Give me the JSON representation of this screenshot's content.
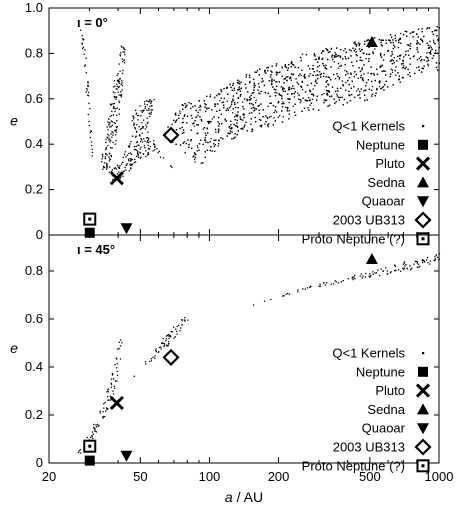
{
  "chart_data": {
    "type": "scatter",
    "x_scale": "log",
    "xlim": [
      20,
      1000
    ],
    "x_ticks": [
      20,
      50,
      100,
      200,
      500,
      1000
    ],
    "xlabel": "a / AU",
    "legend_position": "bottom-right",
    "panels": [
      {
        "label": "ι = 0°",
        "ylabel": "e",
        "ylim": [
          0,
          1.0
        ],
        "y_ticks": [
          0,
          0.2,
          0.4,
          0.6,
          0.8,
          1.0
        ],
        "y_tick_labels": [
          "0",
          "0.2",
          "0.4",
          "0.6",
          "0.8",
          "1.0"
        ],
        "kernel_regions": [
          {
            "name": "left-high-spike",
            "points": [
              [
                27,
                0.92
              ],
              [
                28,
                0.8
              ],
              [
                29,
                0.6
              ],
              [
                30,
                0.38
              ],
              [
                31,
                0.3
              ],
              [
                30.5,
                0.45
              ],
              [
                29.5,
                0.7
              ],
              [
                28.5,
                0.85
              ]
            ]
          },
          {
            "name": "mid-spike",
            "points": [
              [
                33,
                0.3
              ],
              [
                35,
                0.45
              ],
              [
                37,
                0.6
              ],
              [
                40,
                0.78
              ],
              [
                42,
                0.88
              ],
              [
                43,
                0.82
              ],
              [
                41,
                0.6
              ],
              [
                39,
                0.42
              ],
              [
                37,
                0.32
              ],
              [
                36,
                0.28
              ]
            ]
          },
          {
            "name": "resonance-triangle",
            "points": [
              [
                36,
                0.28
              ],
              [
                42,
                0.35
              ],
              [
                48,
                0.5
              ],
              [
                53,
                0.47
              ],
              [
                60,
                0.38
              ],
              [
                68,
                0.3
              ],
              [
                78,
                0.24
              ],
              [
                65,
                0.33
              ],
              [
                55,
                0.36
              ],
              [
                48,
                0.32
              ],
              [
                42,
                0.26
              ],
              [
                38,
                0.23
              ]
            ]
          },
          {
            "name": "broad-band",
            "points": [
              [
                62,
                0.45
              ],
              [
                75,
                0.58
              ],
              [
                100,
                0.62
              ],
              [
                150,
                0.72
              ],
              [
                250,
                0.8
              ],
              [
                400,
                0.85
              ],
              [
                700,
                0.9
              ],
              [
                1000,
                0.93
              ],
              [
                1000,
                0.7
              ],
              [
                800,
                0.72
              ],
              [
                500,
                0.6
              ],
              [
                300,
                0.55
              ],
              [
                180,
                0.48
              ],
              [
                120,
                0.42
              ],
              [
                90,
                0.3
              ],
              [
                80,
                0.35
              ],
              [
                70,
                0.4
              ]
            ]
          },
          {
            "name": "sparse-tail",
            "points": [
              [
                45,
                0.5
              ],
              [
                50,
                0.42
              ],
              [
                55,
                0.52
              ],
              [
                58,
                0.6
              ],
              [
                52,
                0.6
              ],
              [
                48,
                0.58
              ]
            ]
          }
        ],
        "objects": [
          {
            "name": "Neptune",
            "symbol": "square",
            "a": 30.1,
            "e": 0.01
          },
          {
            "name": "Pluto",
            "symbol": "x",
            "a": 39.5,
            "e": 0.25
          },
          {
            "name": "Sedna",
            "symbol": "triangle-up",
            "a": 510,
            "e": 0.85
          },
          {
            "name": "Quaoar",
            "symbol": "triangle-down",
            "a": 43.5,
            "e": 0.03
          },
          {
            "name": "2003 UB313",
            "symbol": "diamond",
            "a": 68,
            "e": 0.44
          },
          {
            "name": "Proto Neptune (?)",
            "symbol": "square-dot",
            "a": 30.1,
            "e": 0.07
          }
        ]
      },
      {
        "label": "ι = 45°",
        "ylabel": "e",
        "ylim": [
          0,
          0.95
        ],
        "y_ticks": [
          0,
          0.2,
          0.4,
          0.6,
          0.8
        ],
        "y_tick_labels": [
          "0",
          "0.2",
          "0.4",
          "0.6",
          "0.8"
        ],
        "kernel_regions": [
          {
            "name": "left-arc",
            "points": [
              [
                24,
                0.01
              ],
              [
                28,
                0.05
              ],
              [
                32,
                0.12
              ],
              [
                36,
                0.22
              ],
              [
                39,
                0.32
              ],
              [
                41,
                0.45
              ],
              [
                42,
                0.55
              ],
              [
                40,
                0.5
              ],
              [
                38,
                0.4
              ],
              [
                35,
                0.28
              ],
              [
                31,
                0.16
              ],
              [
                27,
                0.06
              ]
            ]
          },
          {
            "name": "mid-tail",
            "points": [
              [
                45,
                0.35
              ],
              [
                55,
                0.45
              ],
              [
                62,
                0.52
              ],
              [
                70,
                0.58
              ],
              [
                80,
                0.62
              ],
              [
                85,
                0.63
              ],
              [
                75,
                0.55
              ],
              [
                60,
                0.45
              ],
              [
                50,
                0.38
              ]
            ]
          },
          {
            "name": "high-band",
            "points": [
              [
                120,
                0.62
              ],
              [
                200,
                0.7
              ],
              [
                300,
                0.75
              ],
              [
                500,
                0.8
              ],
              [
                700,
                0.84
              ],
              [
                1000,
                0.88
              ],
              [
                1000,
                0.84
              ],
              [
                700,
                0.8
              ],
              [
                400,
                0.76
              ],
              [
                250,
                0.72
              ],
              [
                150,
                0.66
              ]
            ]
          }
        ],
        "objects": [
          {
            "name": "Neptune",
            "symbol": "square",
            "a": 30.1,
            "e": 0.01
          },
          {
            "name": "Pluto",
            "symbol": "x",
            "a": 39.5,
            "e": 0.25
          },
          {
            "name": "Sedna",
            "symbol": "triangle-up",
            "a": 510,
            "e": 0.85
          },
          {
            "name": "Quaoar",
            "symbol": "triangle-down",
            "a": 43.5,
            "e": 0.03
          },
          {
            "name": "2003 UB313",
            "symbol": "diamond",
            "a": 68,
            "e": 0.44
          },
          {
            "name": "Proto Neptune (?)",
            "symbol": "square-dot",
            "a": 30.1,
            "e": 0.07
          }
        ]
      }
    ],
    "legend": [
      {
        "label": "Q<1 Kernels",
        "symbol": "dot"
      },
      {
        "label": "Neptune",
        "symbol": "square"
      },
      {
        "label": "Pluto",
        "symbol": "x"
      },
      {
        "label": "Sedna",
        "symbol": "triangle-up"
      },
      {
        "label": "Quaoar",
        "symbol": "triangle-down"
      },
      {
        "label": "2003 UB313",
        "symbol": "diamond"
      },
      {
        "label": "Proto Neptune (?)",
        "symbol": "square-dot"
      }
    ]
  }
}
